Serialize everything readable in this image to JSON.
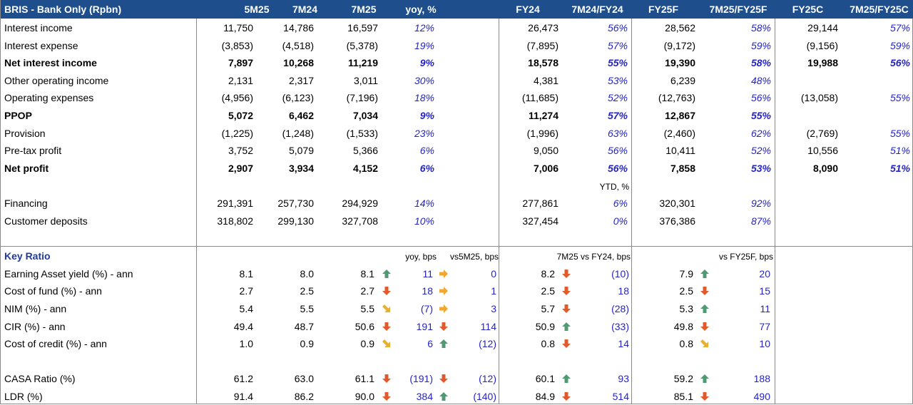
{
  "header": {
    "title": "BRIS - Bank Only (Rpbn)",
    "columns": [
      "5M25",
      "7M24",
      "7M25",
      "yoy, %",
      "FY24",
      "7M24/FY24",
      "FY25F",
      "7M25/FY25F",
      "FY25C",
      "7M25/FY25C"
    ]
  },
  "pl_rows": [
    {
      "label": "Interest income",
      "bold": false,
      "v": [
        "11,750",
        "14,786",
        "16,597",
        "12%",
        "26,473",
        "56%",
        "28,562",
        "58%",
        "29,144",
        "57%"
      ]
    },
    {
      "label": "Interest expense",
      "bold": false,
      "v": [
        "(3,853)",
        "(4,518)",
        "(5,378)",
        "19%",
        "(7,895)",
        "57%",
        "(9,172)",
        "59%",
        "(9,156)",
        "59%"
      ]
    },
    {
      "label": "Net interest income",
      "bold": true,
      "v": [
        "7,897",
        "10,268",
        "11,219",
        "9%",
        "18,578",
        "55%",
        "19,390",
        "58%",
        "19,988",
        "56%"
      ]
    },
    {
      "label": "Other operating income",
      "bold": false,
      "v": [
        "2,131",
        "2,317",
        "3,011",
        "30%",
        "4,381",
        "53%",
        "6,239",
        "48%",
        "",
        ""
      ]
    },
    {
      "label": "Operating expenses",
      "bold": false,
      "v": [
        "(4,956)",
        "(6,123)",
        "(7,196)",
        "18%",
        "(11,685)",
        "52%",
        "(12,763)",
        "56%",
        "(13,058)",
        "55%"
      ]
    },
    {
      "label": "PPOP",
      "bold": true,
      "v": [
        "5,072",
        "6,462",
        "7,034",
        "9%",
        "11,274",
        "57%",
        "12,867",
        "55%",
        "",
        ""
      ]
    },
    {
      "label": "Provision",
      "bold": false,
      "v": [
        "(1,225)",
        "(1,248)",
        "(1,533)",
        "23%",
        "(1,996)",
        "63%",
        "(2,460)",
        "62%",
        "(2,769)",
        "55%"
      ]
    },
    {
      "label": "Pre-tax profit",
      "bold": false,
      "v": [
        "3,752",
        "5,079",
        "5,366",
        "6%",
        "9,050",
        "56%",
        "10,411",
        "52%",
        "10,556",
        "51%"
      ]
    },
    {
      "label": "Net profit",
      "bold": true,
      "v": [
        "2,907",
        "3,934",
        "4,152",
        "6%",
        "7,006",
        "56%",
        "7,858",
        "53%",
        "8,090",
        "51%"
      ]
    }
  ],
  "ytd_label": "YTD, %",
  "bs_rows": [
    {
      "label": "Financing",
      "v": [
        "291,391",
        "257,730",
        "294,929",
        "14%",
        "277,861",
        "6%",
        "320,301",
        "92%"
      ]
    },
    {
      "label": "Customer deposits",
      "v": [
        "318,802",
        "299,130",
        "327,708",
        "10%",
        "327,454",
        "0%",
        "376,386",
        "87%"
      ]
    }
  ],
  "ratio_section": {
    "title": "Key Ratio",
    "sub_headers": {
      "yoy": "yoy, bps",
      "vs5m": "vs5M25, bps",
      "vsfy24": "7M25 vs FY24, bps",
      "vsfy25f": "vs FY25F, bps"
    }
  },
  "arrow_colors": {
    "up": "#4f9a72",
    "down": "#e05a2b",
    "flat": "#f0a830",
    "diag": "#e8b030"
  },
  "ratio_rows": [
    {
      "label": "Earning Asset yield (%) - ann",
      "v5m": "8.1",
      "v7m24": "8.0",
      "v7m25": "8.1",
      "a1": "up",
      "yoy": "11",
      "a2": "flat",
      "vs5m": "0",
      "fy24": "8.2",
      "a3": "down",
      "vsfy24": "(10)",
      "fy25f": "7.9",
      "a4": "up",
      "vsfy25f": "20"
    },
    {
      "label": "Cost of fund (%) - ann",
      "v5m": "2.7",
      "v7m24": "2.5",
      "v7m25": "2.7",
      "a1": "down",
      "yoy": "18",
      "a2": "flat",
      "vs5m": "1",
      "fy24": "2.5",
      "a3": "down",
      "vsfy24": "18",
      "fy25f": "2.5",
      "a4": "down",
      "vsfy25f": "15"
    },
    {
      "label": "NIM (%) - ann",
      "v5m": "5.4",
      "v7m24": "5.5",
      "v7m25": "5.5",
      "a1": "diag",
      "yoy": "(7)",
      "a2": "flat",
      "vs5m": "3",
      "fy24": "5.7",
      "a3": "down",
      "vsfy24": "(28)",
      "fy25f": "5.3",
      "a4": "up",
      "vsfy25f": "11"
    },
    {
      "label": "CIR (%) - ann",
      "v5m": "49.4",
      "v7m24": "48.7",
      "v7m25": "50.6",
      "a1": "down",
      "yoy": "191",
      "a2": "down",
      "vs5m": "114",
      "fy24": "50.9",
      "a3": "up",
      "vsfy24": "(33)",
      "fy25f": "49.8",
      "a4": "down",
      "vsfy25f": "77"
    },
    {
      "label": "Cost of credit (%) - ann",
      "v5m": "1.0",
      "v7m24": "0.9",
      "v7m25": "0.9",
      "a1": "diag",
      "yoy": "6",
      "a2": "up",
      "vs5m": "(12)",
      "fy24": "0.8",
      "a3": "down",
      "vsfy24": "14",
      "fy25f": "0.8",
      "a4": "diag",
      "vsfy25f": "10"
    },
    {
      "label": "CASA Ratio (%)",
      "v5m": "61.2",
      "v7m24": "63.0",
      "v7m25": "61.1",
      "a1": "down",
      "yoy": "(191)",
      "a2": "down",
      "vs5m": "(12)",
      "fy24": "60.1",
      "a3": "up",
      "vsfy24": "93",
      "fy25f": "59.2",
      "a4": "up",
      "vsfy25f": "188"
    },
    {
      "label": "LDR (%)",
      "v5m": "91.4",
      "v7m24": "86.2",
      "v7m25": "90.0",
      "a1": "down",
      "yoy": "384",
      "a2": "up",
      "vs5m": "(140)",
      "fy24": "84.9",
      "a3": "down",
      "vsfy24": "514",
      "fy25f": "85.1",
      "a4": "down",
      "vsfy25f": "490"
    }
  ]
}
